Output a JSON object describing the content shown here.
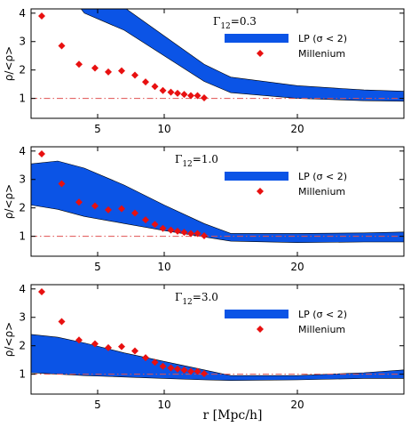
{
  "figure": {
    "xlabel": "r [Mpc/h]",
    "ylabel": "ρ/<ρ>"
  },
  "colors": {
    "band": "#0b54e6",
    "marker": "#e81010",
    "refline": "#e05050",
    "frame": "#000000"
  },
  "chart_data": [
    {
      "type": "area",
      "title_prefix": "Γ",
      "title_sub": "12",
      "title_suffix": "=0.3",
      "xlim": [
        0,
        28
      ],
      "ylim": [
        0.3,
        4.15
      ],
      "xticks": [
        5,
        10,
        20
      ],
      "yticks": [
        1,
        2,
        3,
        4
      ],
      "legend": {
        "position": "top-right",
        "band_label": "LP (σ < 2)",
        "marker_label": "Millenium"
      },
      "reference_y": 1.0,
      "band": {
        "name": "LP (σ < 2)",
        "x": [
          0,
          2,
          4,
          7,
          10,
          13,
          15,
          20,
          25,
          28
        ],
        "upper": [
          8.0,
          6.4,
          5.1,
          4.2,
          3.2,
          2.2,
          1.75,
          1.45,
          1.3,
          1.25
        ],
        "lower": [
          7.0,
          5.2,
          4.0,
          3.4,
          2.5,
          1.6,
          1.2,
          1.0,
          0.92,
          0.9
        ]
      },
      "series": [
        {
          "name": "Millenium",
          "x": [
            0.8,
            2.3,
            3.6,
            4.8,
            5.8,
            6.8,
            7.8,
            8.6,
            9.3,
            9.9,
            10.5,
            11.0,
            11.5,
            12.0,
            12.5,
            13.0
          ],
          "y": [
            3.9,
            2.85,
            2.2,
            2.07,
            1.93,
            1.97,
            1.82,
            1.58,
            1.42,
            1.28,
            1.22,
            1.18,
            1.14,
            1.1,
            1.1,
            1.02
          ]
        }
      ]
    },
    {
      "type": "area",
      "title_prefix": "Γ",
      "title_sub": "12",
      "title_suffix": "=1.0",
      "xlim": [
        0,
        28
      ],
      "ylim": [
        0.3,
        4.15
      ],
      "xticks": [
        5,
        10,
        20
      ],
      "yticks": [
        1,
        2,
        3,
        4
      ],
      "legend": {
        "position": "top-right",
        "band_label": "LP (σ < 2)",
        "marker_label": "Millenium"
      },
      "reference_y": 1.0,
      "band": {
        "name": "LP (σ < 2)",
        "x": [
          0,
          2,
          4,
          7,
          10,
          13,
          15,
          20,
          25,
          28
        ],
        "upper": [
          3.55,
          3.65,
          3.4,
          2.8,
          2.1,
          1.45,
          1.1,
          1.1,
          1.12,
          1.15
        ],
        "lower": [
          2.1,
          1.95,
          1.7,
          1.45,
          1.2,
          0.98,
          0.83,
          0.78,
          0.8,
          0.8
        ]
      },
      "series": [
        {
          "name": "Millenium",
          "x": [
            0.8,
            2.3,
            3.6,
            4.8,
            5.8,
            6.8,
            7.8,
            8.6,
            9.3,
            9.9,
            10.5,
            11.0,
            11.5,
            12.0,
            12.5,
            13.0
          ],
          "y": [
            3.9,
            2.85,
            2.2,
            2.07,
            1.93,
            1.97,
            1.82,
            1.58,
            1.42,
            1.28,
            1.22,
            1.18,
            1.14,
            1.1,
            1.1,
            1.02
          ]
        }
      ]
    },
    {
      "type": "area",
      "title_prefix": "Γ",
      "title_sub": "12",
      "title_suffix": "=3.0",
      "xlim": [
        0,
        28
      ],
      "ylim": [
        0.3,
        4.15
      ],
      "xticks": [
        5,
        10,
        20
      ],
      "yticks": [
        1,
        2,
        3,
        4
      ],
      "legend": {
        "position": "top-right",
        "band_label": "LP (σ < 2)",
        "marker_label": "Millenium"
      },
      "reference_y": 1.0,
      "band": {
        "name": "LP (σ < 2)",
        "x": [
          0,
          2,
          4,
          7,
          10,
          13,
          15,
          20,
          25,
          28
        ],
        "upper": [
          2.4,
          2.3,
          2.1,
          1.75,
          1.45,
          1.15,
          0.95,
          0.95,
          1.05,
          1.15
        ],
        "lower": [
          1.05,
          1.0,
          0.95,
          0.9,
          0.85,
          0.8,
          0.78,
          0.8,
          0.85,
          0.85
        ]
      },
      "series": [
        {
          "name": "Millenium",
          "x": [
            0.8,
            2.3,
            3.6,
            4.8,
            5.8,
            6.8,
            7.8,
            8.6,
            9.3,
            9.9,
            10.5,
            11.0,
            11.5,
            12.0,
            12.5,
            13.0
          ],
          "y": [
            3.9,
            2.85,
            2.2,
            2.07,
            1.93,
            1.97,
            1.82,
            1.58,
            1.42,
            1.28,
            1.22,
            1.18,
            1.14,
            1.1,
            1.1,
            1.02
          ]
        }
      ]
    }
  ]
}
